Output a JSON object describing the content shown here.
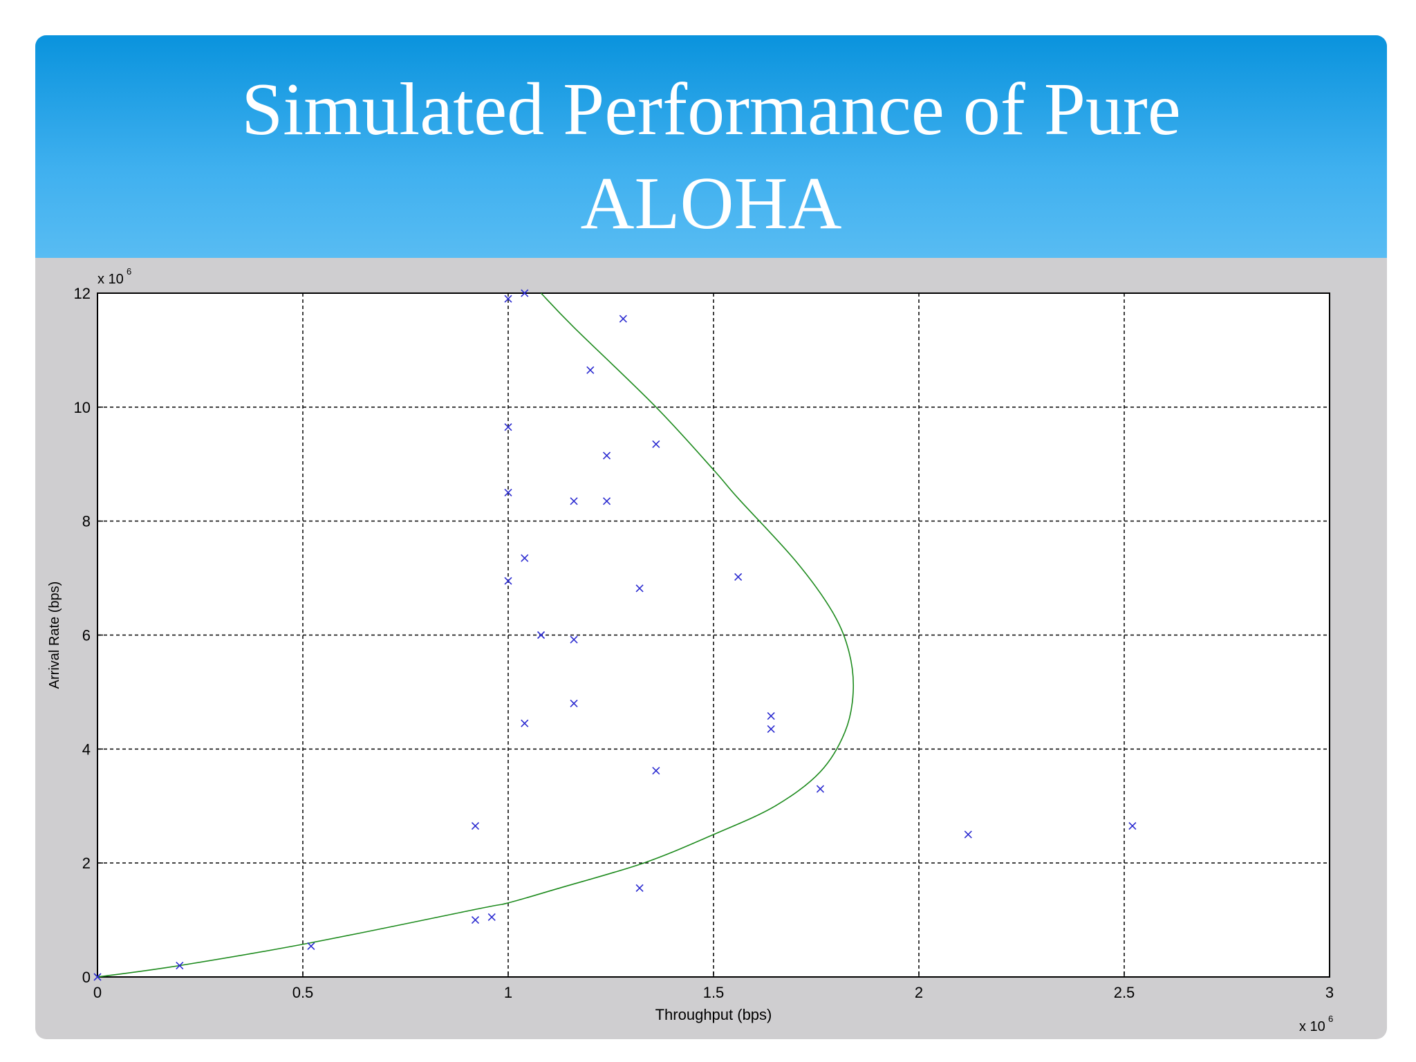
{
  "slide": {
    "title_line1": "Simulated Performance of Pure",
    "title_line2": "ALOHA"
  },
  "chart_data": {
    "type": "scatter",
    "xlabel": "Throughput (bps)",
    "ylabel": "Arrival Rate (bps)",
    "x_exponent_label": "x 10",
    "x_exponent": "6",
    "y_exponent_label": "x 10",
    "y_exponent": "6",
    "xlim": [
      0,
      3
    ],
    "ylim": [
      0,
      12
    ],
    "xticks": [
      "0",
      "0.5",
      "1",
      "1.5",
      "2",
      "2.5",
      "3"
    ],
    "xtick_values": [
      0,
      0.5,
      1,
      1.5,
      2,
      2.5,
      3
    ],
    "yticks": [
      "0",
      "2",
      "4",
      "6",
      "8",
      "10",
      "12"
    ],
    "ytick_values": [
      0,
      2,
      4,
      6,
      8,
      10,
      12
    ],
    "grid": true,
    "marker_color": "#2a2ad0",
    "curve_color": "#1c8a1c",
    "points": [
      {
        "x": 0.0,
        "y": 0.0
      },
      {
        "x": 0.2,
        "y": 0.2
      },
      {
        "x": 0.52,
        "y": 0.54
      },
      {
        "x": 0.92,
        "y": 1.0
      },
      {
        "x": 0.96,
        "y": 1.05
      },
      {
        "x": 0.92,
        "y": 2.65
      },
      {
        "x": 1.0,
        "y": 11.9
      },
      {
        "x": 1.04,
        "y": 12.0
      },
      {
        "x": 1.0,
        "y": 9.65
      },
      {
        "x": 1.0,
        "y": 8.5
      },
      {
        "x": 1.04,
        "y": 7.35
      },
      {
        "x": 1.0,
        "y": 6.95
      },
      {
        "x": 1.08,
        "y": 6.0
      },
      {
        "x": 1.04,
        "y": 4.45
      },
      {
        "x": 1.16,
        "y": 8.35
      },
      {
        "x": 1.16,
        "y": 5.92
      },
      {
        "x": 1.16,
        "y": 4.8
      },
      {
        "x": 1.2,
        "y": 10.65
      },
      {
        "x": 1.24,
        "y": 9.15
      },
      {
        "x": 1.24,
        "y": 8.35
      },
      {
        "x": 1.28,
        "y": 11.55
      },
      {
        "x": 1.32,
        "y": 6.82
      },
      {
        "x": 1.32,
        "y": 1.56
      },
      {
        "x": 1.36,
        "y": 9.35
      },
      {
        "x": 1.36,
        "y": 3.62
      },
      {
        "x": 1.56,
        "y": 7.02
      },
      {
        "x": 1.64,
        "y": 4.58
      },
      {
        "x": 1.64,
        "y": 4.35
      },
      {
        "x": 1.76,
        "y": 3.3
      },
      {
        "x": 2.12,
        "y": 2.5
      },
      {
        "x": 2.52,
        "y": 2.65
      }
    ],
    "curve": {
      "x": [
        0.0,
        0.2,
        0.52,
        0.93,
        1.0,
        1.12,
        1.33,
        1.5,
        1.65,
        1.76,
        1.82,
        1.84,
        1.83,
        1.79,
        1.7,
        1.56,
        1.5,
        1.36,
        1.16,
        1.08
      ],
      "y": [
        0.0,
        0.2,
        0.6,
        1.2,
        1.3,
        1.55,
        2.0,
        2.5,
        3.0,
        3.6,
        4.3,
        5.0,
        5.7,
        6.4,
        7.3,
        8.4,
        8.9,
        10.0,
        11.4,
        12.0
      ]
    }
  }
}
